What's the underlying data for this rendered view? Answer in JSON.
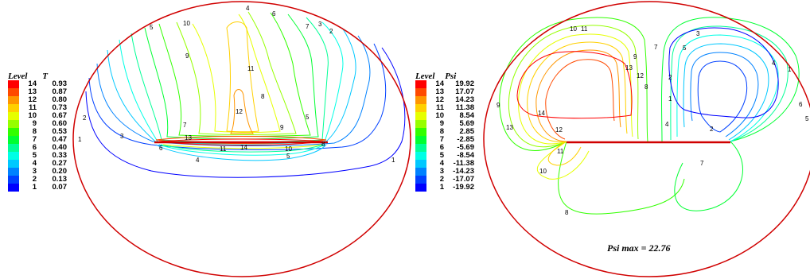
{
  "left_panel": {
    "legend_level_label": "Level",
    "legend_var_label": "T",
    "levels": [
      {
        "level": "14",
        "value": "0.93",
        "color": "#ff0000"
      },
      {
        "level": "13",
        "value": "0.87",
        "color": "#ff4a00"
      },
      {
        "level": "12",
        "value": "0.80",
        "color": "#ff9600"
      },
      {
        "level": "11",
        "value": "0.73",
        "color": "#ffd000"
      },
      {
        "level": "10",
        "value": "0.67",
        "color": "#e6ff00"
      },
      {
        "level": "9",
        "value": "0.60",
        "color": "#96ff00"
      },
      {
        "level": "8",
        "value": "0.53",
        "color": "#32ff00"
      },
      {
        "level": "7",
        "value": "0.47",
        "color": "#00ff32"
      },
      {
        "level": "6",
        "value": "0.40",
        "color": "#00ff96"
      },
      {
        "level": "5",
        "value": "0.33",
        "color": "#00ffe6"
      },
      {
        "level": "4",
        "value": "0.27",
        "color": "#00c8ff"
      },
      {
        "level": "3",
        "value": "0.20",
        "color": "#0082ff"
      },
      {
        "level": "2",
        "value": "0.13",
        "color": "#0040ff"
      },
      {
        "level": "1",
        "value": "0.07",
        "color": "#0000ff"
      }
    ],
    "contour_labels": [
      "4",
      "6",
      "7",
      "5",
      "3",
      "10",
      "9",
      "11",
      "2",
      "1",
      "12",
      "8",
      "7",
      "9",
      "13",
      "6",
      "11",
      "14",
      "10",
      "5",
      "4",
      "8",
      "5",
      "3",
      "2",
      "1"
    ]
  },
  "right_panel": {
    "legend_level_label": "Level",
    "legend_var_label": "Psi",
    "levels": [
      {
        "level": "14",
        "value": "19.92",
        "color": "#ff0000"
      },
      {
        "level": "13",
        "value": "17.07",
        "color": "#ff4a00"
      },
      {
        "level": "12",
        "value": "14.23",
        "color": "#ff9600"
      },
      {
        "level": "11",
        "value": "11.38",
        "color": "#ffd000"
      },
      {
        "level": "10",
        "value": "8.54",
        "color": "#e6ff00"
      },
      {
        "level": "9",
        "value": "5.69",
        "color": "#96ff00"
      },
      {
        "level": "8",
        "value": "2.85",
        "color": "#32ff00"
      },
      {
        "level": "7",
        "value": "-2.85",
        "color": "#00ff32"
      },
      {
        "level": "6",
        "value": "-5.69",
        "color": "#00ff96"
      },
      {
        "level": "5",
        "value": "-8.54",
        "color": "#00ffe6"
      },
      {
        "level": "4",
        "value": "-11.38",
        "color": "#00c8ff"
      },
      {
        "level": "3",
        "value": "-14.23",
        "color": "#0082ff"
      },
      {
        "level": "2",
        "value": "-17.07",
        "color": "#0040ff"
      },
      {
        "level": "1",
        "value": "-19.92",
        "color": "#0000ff"
      }
    ],
    "annotation": "Psi max = 22.76",
    "contour_labels": [
      "10",
      "11",
      "9",
      "13",
      "12",
      "8",
      "7",
      "3",
      "5",
      "4",
      "1",
      "2",
      "14",
      "13",
      "12",
      "11",
      "10",
      "8",
      "4",
      "2",
      "7",
      "9",
      "6",
      "5",
      "1"
    ]
  },
  "colors": {
    "boundary": "#d00000",
    "heater": "#d00000",
    "level14": "#ff0000",
    "level13": "#ff4a00",
    "level12": "#ff9600",
    "level11": "#ffd000",
    "level10": "#e6ff00",
    "level9": "#96ff00",
    "level8": "#32ff00",
    "level7": "#00ff32",
    "level6": "#00ff96",
    "level5": "#00ffe6",
    "level4": "#00c8ff",
    "level3": "#0082ff",
    "level2": "#0040ff",
    "level1": "#0000ff"
  }
}
